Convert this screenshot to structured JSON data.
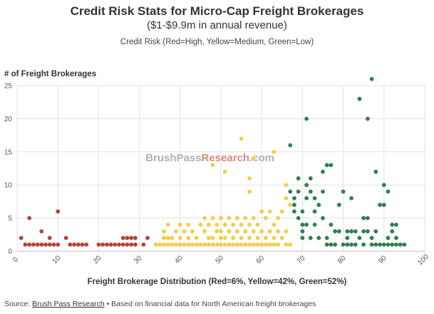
{
  "chart_data": {
    "type": "scatter",
    "title": "Credit Risk Stats for Micro-Cap Freight Brokerages",
    "subtitle": "($1-$9.9m in annual revenue)",
    "legend_text": "Credit Risk (Red=High, Yellow=Medium, Green=Low)",
    "ylabel": "# of Freight Brokerages",
    "xlabel": "Freight Brokerage Distribution (Red=6%, Yellow=42%, Green=52%)",
    "xlim": [
      0,
      100
    ],
    "ylim": [
      0,
      25
    ],
    "xticks": [
      0,
      10,
      20,
      30,
      40,
      50,
      60,
      70,
      80,
      90,
      100
    ],
    "yticks": [
      0,
      5,
      10,
      15,
      20,
      25
    ],
    "watermark": {
      "part1": "BrushPass",
      "part2": "Research",
      "part3": ".com"
    },
    "colors": {
      "red": "#b5443b",
      "yellow": "#f2cd4a",
      "green": "#2f7f4f",
      "watermark_gray": "#b0b0b0",
      "watermark_red": "#d98a86"
    },
    "series": [
      {
        "name": "High",
        "color_key": "red",
        "points": [
          [
            1,
            2
          ],
          [
            2,
            1
          ],
          [
            3,
            1
          ],
          [
            3,
            5
          ],
          [
            4,
            1
          ],
          [
            5,
            1
          ],
          [
            6,
            1
          ],
          [
            6,
            3
          ],
          [
            7,
            1
          ],
          [
            8,
            1
          ],
          [
            8,
            2
          ],
          [
            9,
            1
          ],
          [
            10,
            1
          ],
          [
            10,
            6
          ],
          [
            12,
            2
          ],
          [
            13,
            1
          ],
          [
            14,
            1
          ],
          [
            15,
            1
          ],
          [
            16,
            1
          ],
          [
            17,
            1
          ],
          [
            20,
            1
          ],
          [
            21,
            1
          ],
          [
            22,
            1
          ],
          [
            23,
            1
          ],
          [
            24,
            1
          ],
          [
            25,
            1
          ],
          [
            26,
            1
          ],
          [
            26,
            2
          ],
          [
            27,
            1
          ],
          [
            27,
            2
          ],
          [
            28,
            1
          ],
          [
            28,
            2
          ],
          [
            29,
            2
          ],
          [
            29,
            1
          ],
          [
            31,
            1
          ],
          [
            32,
            2
          ]
        ]
      },
      {
        "name": "Medium",
        "color_key": "yellow",
        "points": [
          [
            34,
            1
          ],
          [
            35,
            1
          ],
          [
            36,
            1
          ],
          [
            36,
            2
          ],
          [
            36,
            3
          ],
          [
            37,
            1
          ],
          [
            37,
            2
          ],
          [
            37,
            4
          ],
          [
            38,
            1
          ],
          [
            38,
            2
          ],
          [
            39,
            1
          ],
          [
            39,
            3
          ],
          [
            40,
            1
          ],
          [
            40,
            2
          ],
          [
            40,
            4
          ],
          [
            41,
            1
          ],
          [
            41,
            3
          ],
          [
            42,
            1
          ],
          [
            42,
            2
          ],
          [
            42,
            4
          ],
          [
            43,
            1
          ],
          [
            43,
            3
          ],
          [
            44,
            1
          ],
          [
            44,
            2
          ],
          [
            45,
            1
          ],
          [
            45,
            4
          ],
          [
            46,
            1
          ],
          [
            46,
            3
          ],
          [
            46,
            5
          ],
          [
            47,
            1
          ],
          [
            47,
            2
          ],
          [
            47,
            4
          ],
          [
            48,
            1
          ],
          [
            48,
            2
          ],
          [
            48,
            5
          ],
          [
            48,
            13
          ],
          [
            49,
            1
          ],
          [
            49,
            3
          ],
          [
            49,
            4
          ],
          [
            50,
            1
          ],
          [
            50,
            2
          ],
          [
            50,
            3
          ],
          [
            50,
            5
          ],
          [
            51,
            1
          ],
          [
            51,
            2
          ],
          [
            51,
            4
          ],
          [
            51,
            12
          ],
          [
            52,
            1
          ],
          [
            52,
            3
          ],
          [
            52,
            5
          ],
          [
            53,
            1
          ],
          [
            53,
            2
          ],
          [
            53,
            4
          ],
          [
            54,
            1
          ],
          [
            54,
            3
          ],
          [
            54,
            5
          ],
          [
            55,
            1
          ],
          [
            55,
            2
          ],
          [
            55,
            4
          ],
          [
            55,
            17
          ],
          [
            56,
            1
          ],
          [
            56,
            3
          ],
          [
            56,
            5
          ],
          [
            57,
            1
          ],
          [
            57,
            2
          ],
          [
            57,
            4
          ],
          [
            57,
            9
          ],
          [
            57,
            11
          ],
          [
            58,
            1
          ],
          [
            58,
            3
          ],
          [
            58,
            5
          ],
          [
            58,
            14
          ],
          [
            59,
            1
          ],
          [
            59,
            2
          ],
          [
            59,
            4
          ],
          [
            60,
            1
          ],
          [
            60,
            3
          ],
          [
            60,
            6
          ],
          [
            61,
            1
          ],
          [
            61,
            2
          ],
          [
            61,
            5
          ],
          [
            62,
            1
          ],
          [
            62,
            3
          ],
          [
            62,
            6
          ],
          [
            63,
            1
          ],
          [
            63,
            2
          ],
          [
            63,
            4
          ],
          [
            63,
            15
          ],
          [
            64,
            1
          ],
          [
            64,
            3
          ],
          [
            64,
            5
          ],
          [
            65,
            2
          ],
          [
            65,
            6
          ],
          [
            66,
            1
          ],
          [
            66,
            3
          ],
          [
            66,
            8
          ],
          [
            66,
            10
          ],
          [
            67,
            1
          ],
          [
            67,
            7
          ]
        ]
      },
      {
        "name": "Low",
        "color_key": "green",
        "points": [
          [
            67,
            16
          ],
          [
            67,
            9
          ],
          [
            68,
            7
          ],
          [
            68,
            8
          ],
          [
            68,
            6
          ],
          [
            69,
            9
          ],
          [
            69,
            11
          ],
          [
            69,
            5
          ],
          [
            70,
            6
          ],
          [
            70,
            3
          ],
          [
            70,
            2
          ],
          [
            70,
            4
          ],
          [
            71,
            20
          ],
          [
            71,
            10
          ],
          [
            71,
            8
          ],
          [
            71,
            4
          ],
          [
            72,
            2
          ],
          [
            72,
            11
          ],
          [
            72,
            9
          ],
          [
            73,
            8
          ],
          [
            73,
            4
          ],
          [
            73,
            6
          ],
          [
            74,
            2
          ],
          [
            74,
            7
          ],
          [
            75,
            12
          ],
          [
            75,
            9
          ],
          [
            75,
            5
          ],
          [
            76,
            13
          ],
          [
            76,
            1
          ],
          [
            76,
            2
          ],
          [
            77,
            13
          ],
          [
            77,
            1
          ],
          [
            77,
            4
          ],
          [
            78,
            3
          ],
          [
            78,
            1
          ],
          [
            79,
            3
          ],
          [
            79,
            7
          ],
          [
            80,
            9
          ],
          [
            80,
            1
          ],
          [
            81,
            3
          ],
          [
            81,
            2
          ],
          [
            81,
            1
          ],
          [
            82,
            8
          ],
          [
            82,
            3
          ],
          [
            82,
            1
          ],
          [
            83,
            3
          ],
          [
            83,
            1
          ],
          [
            84,
            23
          ],
          [
            84,
            2
          ],
          [
            85,
            5
          ],
          [
            85,
            3
          ],
          [
            85,
            1
          ],
          [
            86,
            20
          ],
          [
            86,
            5
          ],
          [
            86,
            3
          ],
          [
            87,
            26
          ],
          [
            87,
            1
          ],
          [
            87,
            2
          ],
          [
            88,
            12
          ],
          [
            88,
            3
          ],
          [
            88,
            1
          ],
          [
            89,
            7
          ],
          [
            89,
            1
          ],
          [
            90,
            10
          ],
          [
            90,
            7
          ],
          [
            90,
            1
          ],
          [
            91,
            9
          ],
          [
            91,
            2
          ],
          [
            91,
            1
          ],
          [
            92,
            3
          ],
          [
            92,
            4
          ],
          [
            92,
            1
          ],
          [
            93,
            4
          ],
          [
            93,
            2
          ],
          [
            93,
            1
          ],
          [
            94,
            1
          ],
          [
            95,
            1
          ]
        ]
      }
    ]
  },
  "footer": {
    "source_label": "Source:",
    "source_link": "Brush Pass Research",
    "note": "• Based on financial data for North American freight brokerages"
  }
}
